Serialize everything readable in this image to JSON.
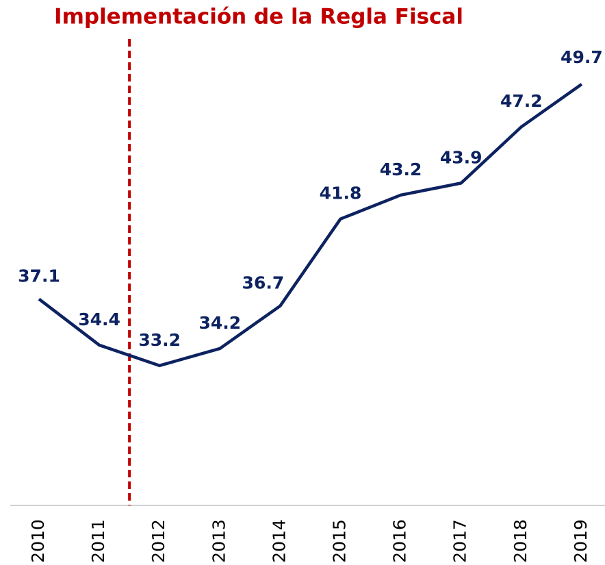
{
  "chart_data": {
    "type": "line",
    "annotation": "Implementación de la Regla Fiscal",
    "annotation_color": "#c00000",
    "categories": [
      "2010",
      "2011",
      "2012",
      "2013",
      "2014",
      "2015",
      "2016",
      "2017",
      "2018",
      "2019"
    ],
    "series": [
      {
        "color": "#0d2260",
        "values": [
          37.1,
          34.4,
          33.2,
          34.2,
          36.7,
          41.8,
          43.2,
          43.9,
          47.2,
          49.7
        ]
      }
    ],
    "ylim": [
      25,
      55
    ],
    "data_labels": true
  }
}
